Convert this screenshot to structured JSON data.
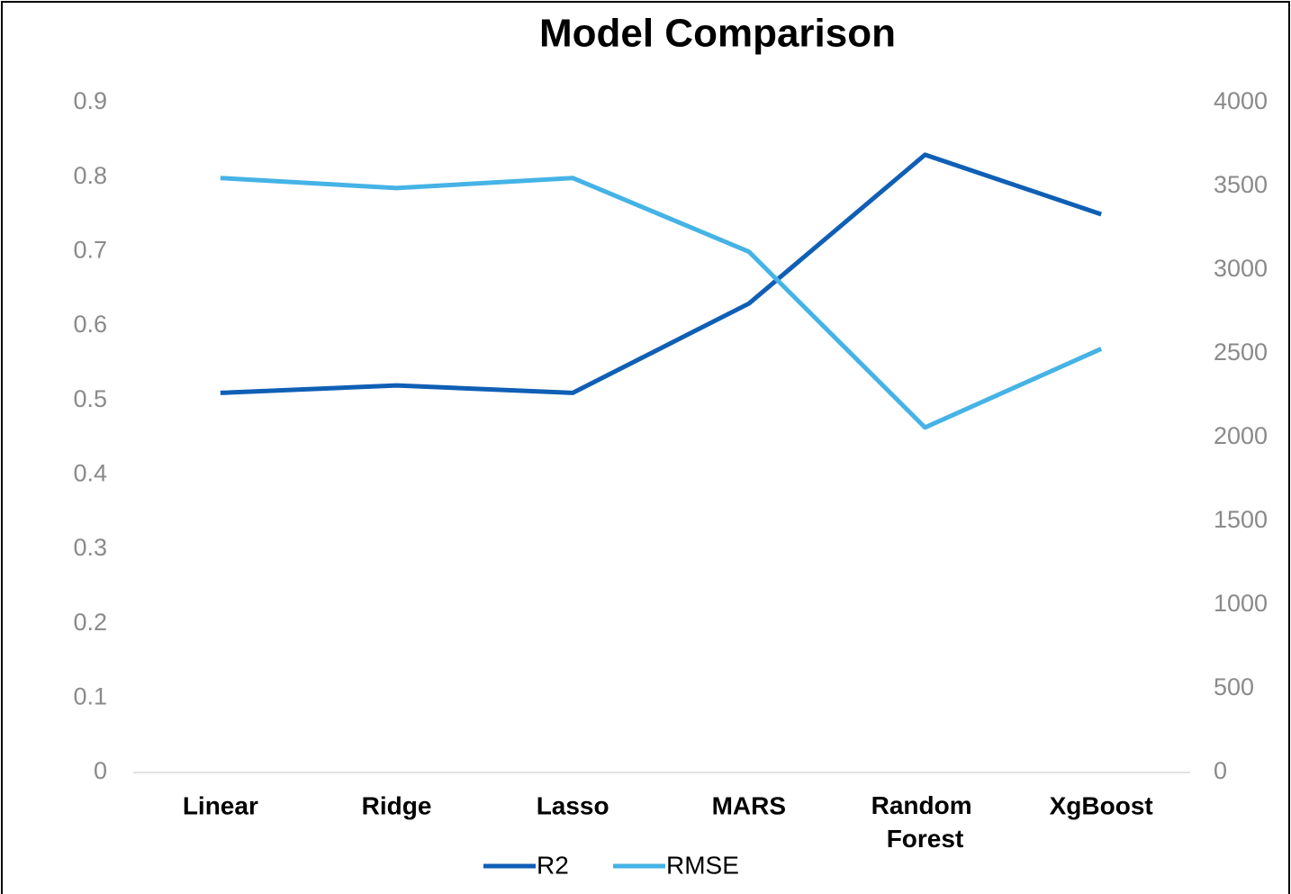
{
  "chart_data": {
    "type": "line",
    "title": "Model Comparison",
    "categories": [
      "Linear",
      "Ridge",
      "Lasso",
      "MARS",
      "Random Forest",
      "XgBoost"
    ],
    "series": [
      {
        "name": "R2",
        "color": "#0f5fb5",
        "values": [
          0.51,
          0.52,
          0.51,
          0.63,
          0.83,
          0.75
        ]
      },
      {
        "name": "RMSE",
        "color": "#45b3e5",
        "axis": "y2",
        "values": [
          3550,
          3490,
          3550,
          3110,
          2060,
          2530
        ]
      }
    ],
    "ylim": [
      0,
      0.9
    ],
    "yticks": [
      0,
      0.1,
      0.2,
      0.3,
      0.4,
      0.5,
      0.6,
      0.7,
      0.8,
      0.9
    ],
    "y2lim": [
      0,
      4000
    ],
    "y2ticks": [
      0,
      500,
      1000,
      1500,
      2000,
      2500,
      3000,
      3500,
      4000
    ],
    "legend": "bottom"
  }
}
